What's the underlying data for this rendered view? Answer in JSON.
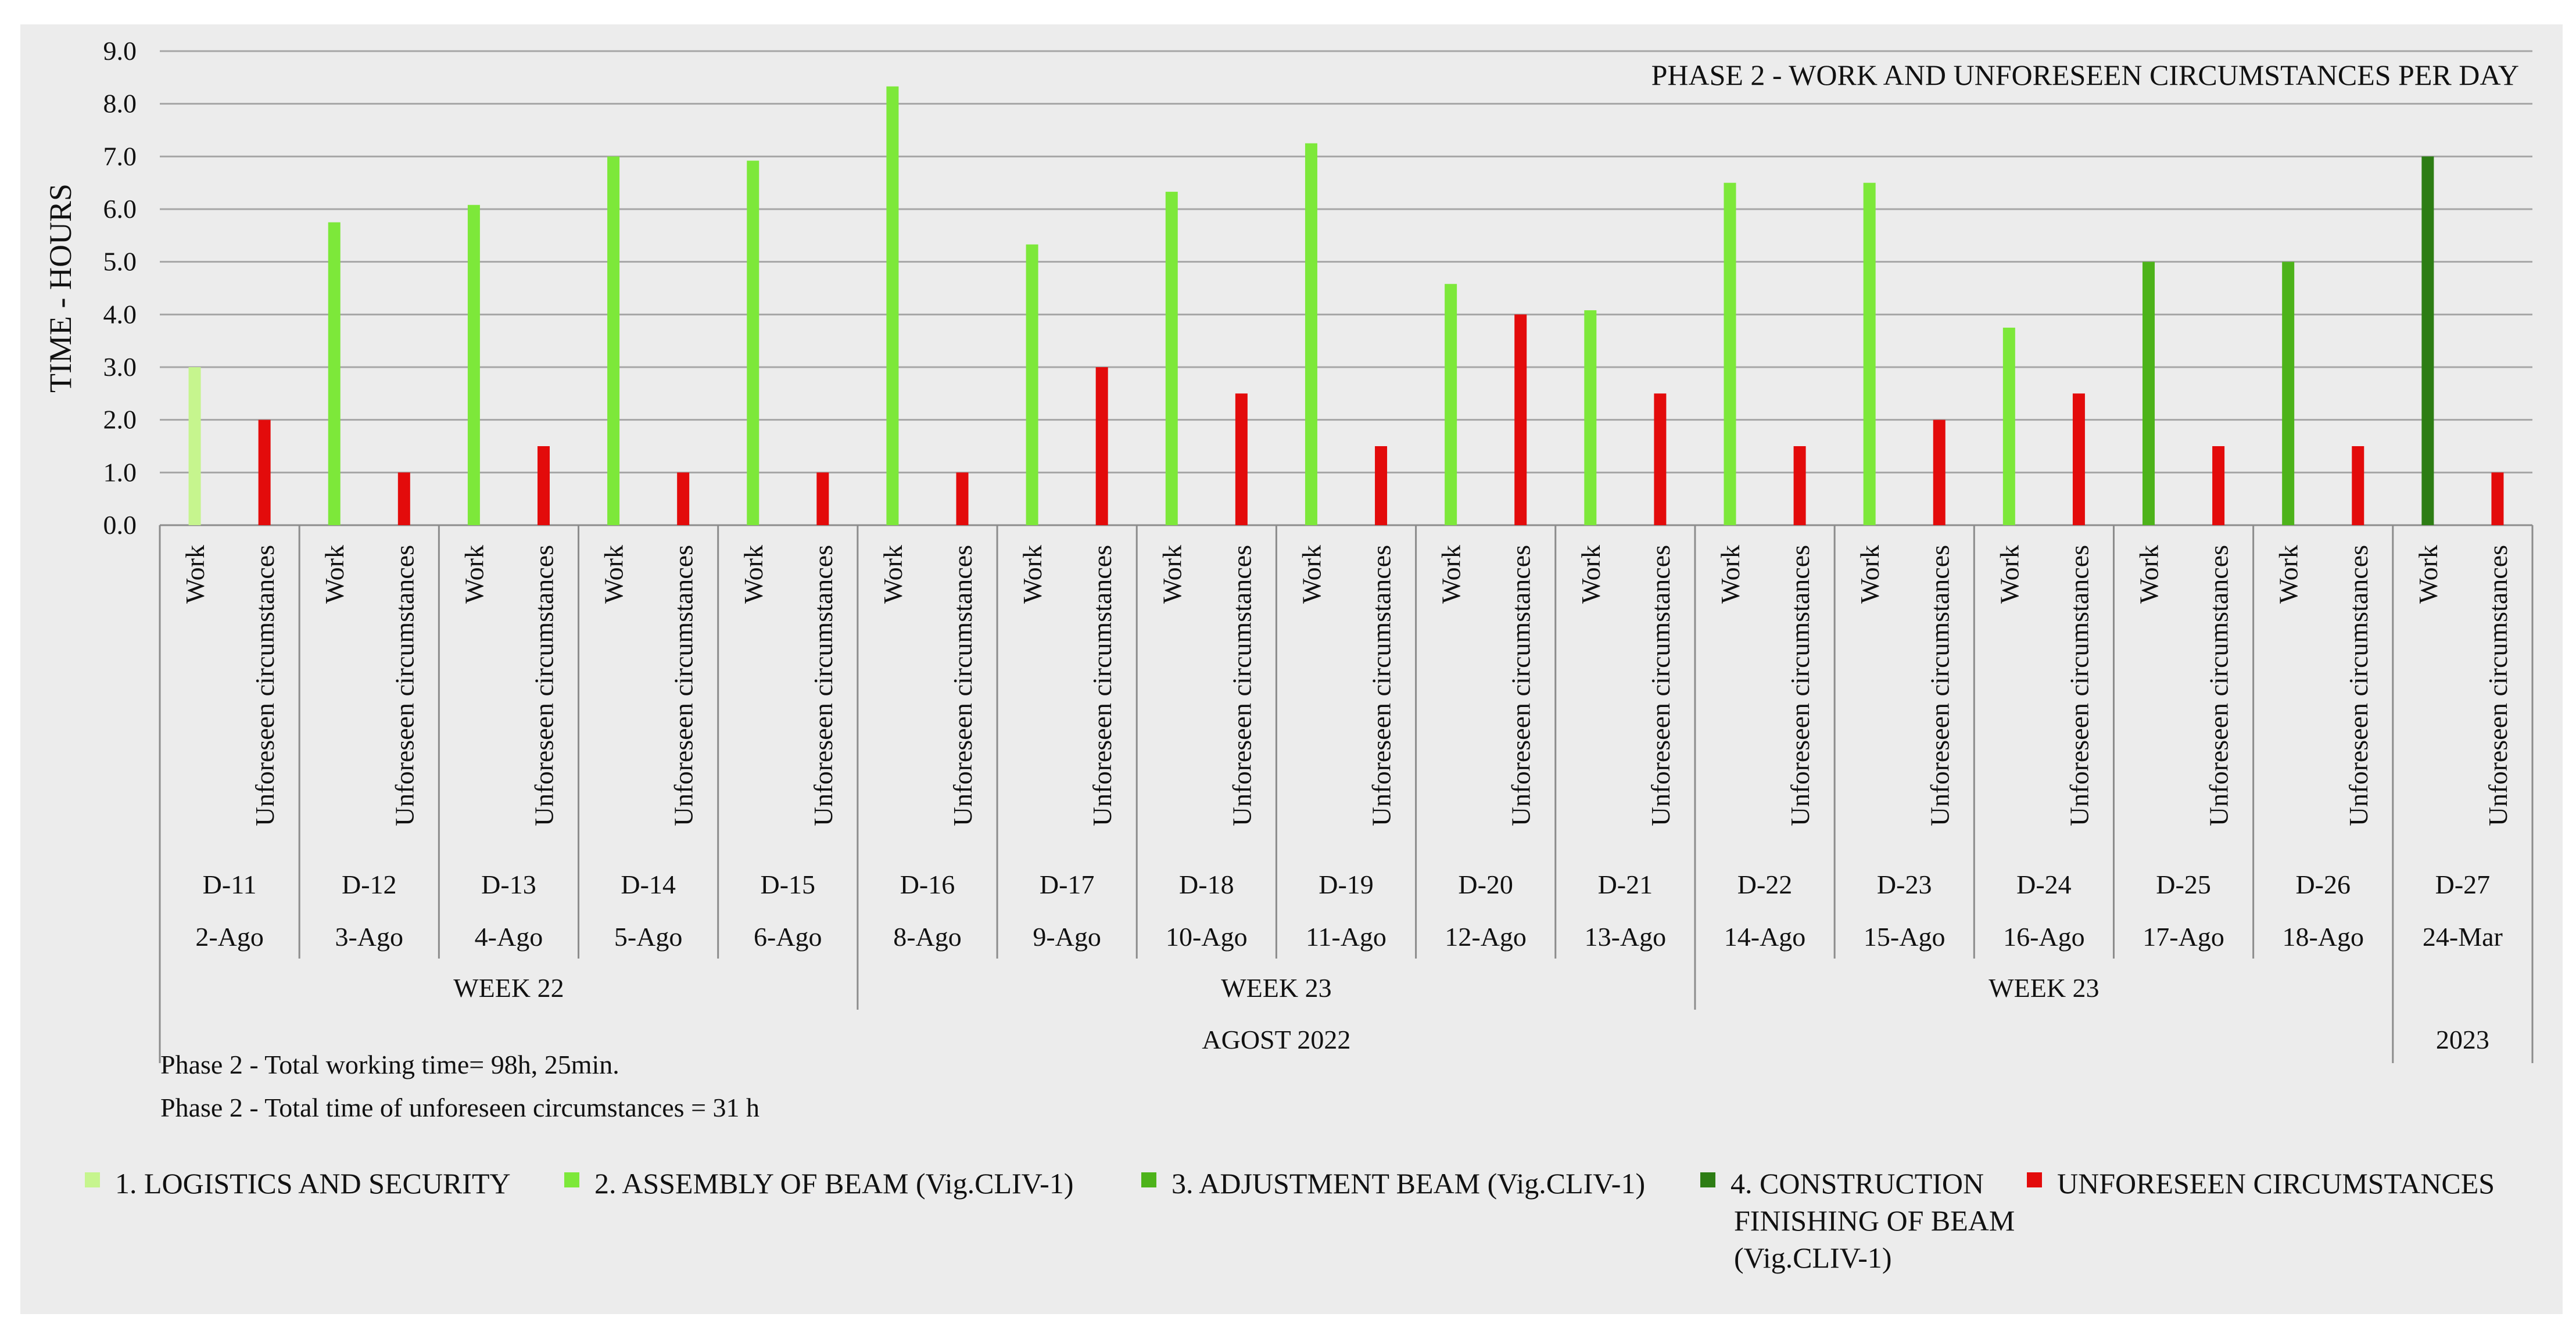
{
  "chart_data": {
    "type": "bar",
    "title": "PHASE  2 - WORK AND UNFORESEEN CIRCUMSTANCES PER DAY",
    "ylabel": "TIME - HOURS",
    "ylim": [
      0,
      9
    ],
    "yticks": [
      "0.0",
      "1.0",
      "2.0",
      "3.0",
      "4.0",
      "5.0",
      "6.0",
      "7.0",
      "8.0",
      "9.0"
    ],
    "grid": true,
    "bar_labels": [
      "Work",
      "Unforeseen circumstances"
    ],
    "days": [
      {
        "day": "D-11",
        "date": "2-Ago",
        "work": 3.0,
        "work_series": 1,
        "unforeseen": 2.0
      },
      {
        "day": "D-12",
        "date": "3-Ago",
        "work": 5.75,
        "work_series": 2,
        "unforeseen": 1.0
      },
      {
        "day": "D-13",
        "date": "4-Ago",
        "work": 6.08,
        "work_series": 2,
        "unforeseen": 1.5
      },
      {
        "day": "D-14",
        "date": "5-Ago",
        "work": 7.0,
        "work_series": 2,
        "unforeseen": 1.0
      },
      {
        "day": "D-15",
        "date": "6-Ago",
        "work": 6.92,
        "work_series": 2,
        "unforeseen": 1.0
      },
      {
        "day": "D-16",
        "date": "8-Ago",
        "work": 8.33,
        "work_series": 2,
        "unforeseen": 1.0
      },
      {
        "day": "D-17",
        "date": "9-Ago",
        "work": 5.33,
        "work_series": 2,
        "unforeseen": 3.0
      },
      {
        "day": "D-18",
        "date": "10-Ago",
        "work": 6.33,
        "work_series": 2,
        "unforeseen": 2.5
      },
      {
        "day": "D-19",
        "date": "11-Ago",
        "work": 7.25,
        "work_series": 2,
        "unforeseen": 1.5
      },
      {
        "day": "D-20",
        "date": "12-Ago",
        "work": 4.58,
        "work_series": 2,
        "unforeseen": 4.0
      },
      {
        "day": "D-21",
        "date": "13-Ago",
        "work": 4.08,
        "work_series": 2,
        "unforeseen": 2.5
      },
      {
        "day": "D-22",
        "date": "14-Ago",
        "work": 6.5,
        "work_series": 2,
        "unforeseen": 1.5
      },
      {
        "day": "D-23",
        "date": "15-Ago",
        "work": 6.5,
        "work_series": 2,
        "unforeseen": 2.0
      },
      {
        "day": "D-24",
        "date": "16-Ago",
        "work": 3.75,
        "work_series": 2,
        "unforeseen": 2.5
      },
      {
        "day": "D-25",
        "date": "17-Ago",
        "work": 5.0,
        "work_series": 3,
        "unforeseen": 1.5
      },
      {
        "day": "D-26",
        "date": "18-Ago",
        "work": 5.0,
        "work_series": 3,
        "unforeseen": 1.5
      },
      {
        "day": "D-27",
        "date": "24-Mar",
        "work": 7.0,
        "work_series": 4,
        "unforeseen": 1.0
      }
    ],
    "weeks": [
      {
        "label": "WEEK 22",
        "first_day": 0,
        "last_day": 4
      },
      {
        "label": "WEEK 23",
        "first_day": 5,
        "last_day": 10
      },
      {
        "label": "WEEK 23",
        "first_day": 11,
        "last_day": 15
      }
    ],
    "periods": [
      {
        "label": "AGOST 2022",
        "first_day": 0,
        "last_day": 15
      },
      {
        "label": "2023",
        "first_day": 16,
        "last_day": 16
      }
    ],
    "series": [
      {
        "name": "1. LOGISTICS AND SECURITY",
        "color": "#c6f58e"
      },
      {
        "name": "2. ASSEMBLY OF BEAM (Vig.CLIV-1)",
        "color": "#7de83a"
      },
      {
        "name": "3. ADJUSTMENT BEAM (Vig.CLIV-1)",
        "color": "#4db31a"
      },
      {
        "name": "4. CONSTRUCTION FINISHING OF BEAM (Vig.CLIV-1)",
        "color": "#2d7d14"
      },
      {
        "name": "UNFORESEEN CIRCUMSTANCES",
        "color": "#e30b0b"
      }
    ],
    "legend_lines": [
      [
        "1. LOGISTICS AND SECURITY"
      ],
      [
        "2. ASSEMBLY OF BEAM (Vig.CLIV-1)"
      ],
      [
        "3. ADJUSTMENT BEAM (Vig.CLIV-1)"
      ],
      [
        "4. CONSTRUCTION",
        "FINISHING OF BEAM",
        "(Vig.CLIV-1)"
      ],
      [
        "UNFORESEEN CIRCUMSTANCES"
      ]
    ],
    "legend_position": "bottom",
    "annotations": [
      "Phase 2 - Total working time= 98h, 25min.",
      "Phase 2 - Total time of unforeseen circumstances = 31 h"
    ]
  },
  "colors": {
    "panel_background": "#ececec",
    "gridline": "#a6a6a6",
    "axis": "#8c8c8c",
    "text": "#111111"
  }
}
